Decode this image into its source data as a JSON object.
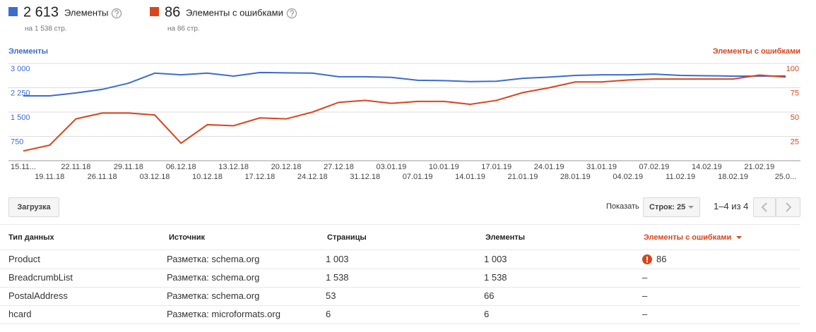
{
  "summary": [
    {
      "value": "2 613",
      "pages": "на 1 538 стр."
    },
    {
      "value": "86",
      "pages": "на 86 стр."
    }
  ],
  "chart_data": {
    "type": "line",
    "ylabel": "Элементы",
    "y2label": "Элементы с ошибками",
    "categories": [
      "15.11...",
      "19.11.18",
      "22.11.18",
      "26.11.18",
      "29.11.18",
      "03.12.18",
      "06.12.18",
      "10.12.18",
      "13.12.18",
      "17.12.18",
      "20.12.18",
      "24.12.18",
      "27.12.18",
      "31.12.18",
      "03.01.19",
      "07.01.19",
      "10.01.19",
      "14.01.19",
      "17.01.19",
      "21.01.19",
      "24.01.19",
      "28.01.19",
      "31.01.19",
      "04.02.19",
      "07.02.19",
      "11.02.19",
      "14.02.19",
      "18.02.19",
      "21.02.19",
      "25.0..."
    ],
    "series": [
      {
        "name": "Элементы",
        "color": "#3b6ccf",
        "values": [
          2000,
          2000,
          2090,
          2200,
          2390,
          2700,
          2650,
          2700,
          2610,
          2720,
          2710,
          2700,
          2590,
          2590,
          2570,
          2480,
          2470,
          2440,
          2450,
          2540,
          2580,
          2630,
          2650,
          2650,
          2670,
          2630,
          2620,
          2610,
          2610,
          2613
        ]
      },
      {
        "name": "Элементы с ошибками",
        "color": "#d9441c",
        "axis": "y2",
        "values": [
          10,
          16,
          43,
          49,
          49,
          47,
          18,
          37,
          36,
          44,
          43,
          50,
          60,
          62,
          59,
          61,
          61,
          58,
          62,
          70,
          75,
          81,
          81,
          83,
          84,
          84,
          84,
          84,
          88,
          86
        ]
      }
    ],
    "ylim": [
      0,
      3000
    ],
    "yticks": [
      750,
      {
        "value": 1500,
        "label": "1 500"
      },
      {
        "value": 2250,
        "label": "2 250"
      },
      {
        "value": 3000,
        "label": "3 000"
      }
    ],
    "y2lim": [
      0,
      100
    ],
    "y2ticks": [
      25,
      50,
      75,
      100
    ],
    "grid": true
  },
  "toolbar": {
    "download": "Загрузка",
    "show": "Показать",
    "rows": "Строк: 25",
    "range": "1–4 из 4"
  },
  "table": {
    "headers": [
      "Тип данных",
      "Источник",
      "Страницы",
      "Элементы",
      "Элементы с ошибками"
    ],
    "rows": [
      [
        "Product",
        "Разметка: schema.org",
        "1 003",
        "1 003",
        "86"
      ],
      [
        "BreadcrumbList",
        "Разметка: schema.org",
        "1 538",
        "1 538",
        "–"
      ],
      [
        "PostalAddress",
        "Разметка: schema.org",
        "53",
        "66",
        "–"
      ],
      [
        "hcard",
        "Разметка: microformats.org",
        "6",
        "6",
        "–"
      ]
    ]
  }
}
